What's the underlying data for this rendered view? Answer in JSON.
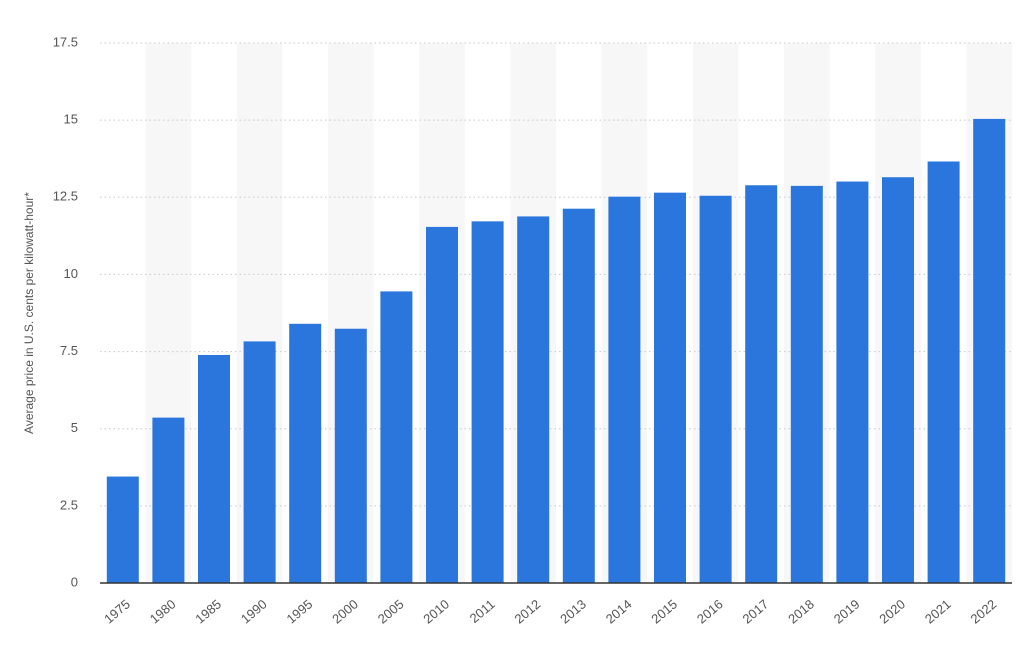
{
  "chart_data": {
    "type": "bar",
    "y_label": "Average price in U.S. cents per kilowatt-hour*",
    "categories": [
      "1975",
      "1980",
      "1985",
      "1990",
      "1995",
      "2000",
      "2005",
      "2010",
      "2011",
      "2012",
      "2013",
      "2014",
      "2015",
      "2016",
      "2017",
      "2018",
      "2019",
      "2020",
      "2021",
      "2022"
    ],
    "values": [
      3.45,
      5.36,
      7.39,
      7.83,
      8.4,
      8.24,
      9.45,
      11.54,
      11.72,
      11.88,
      12.13,
      12.52,
      12.65,
      12.55,
      12.89,
      12.87,
      13.01,
      13.15,
      13.66,
      15.04
    ],
    "color": "#2a76dd",
    "ylim": [
      0,
      17.5
    ],
    "yticks": [
      0,
      2.5,
      5,
      7.5,
      10,
      12.5,
      15,
      17.5
    ],
    "grid": true
  }
}
